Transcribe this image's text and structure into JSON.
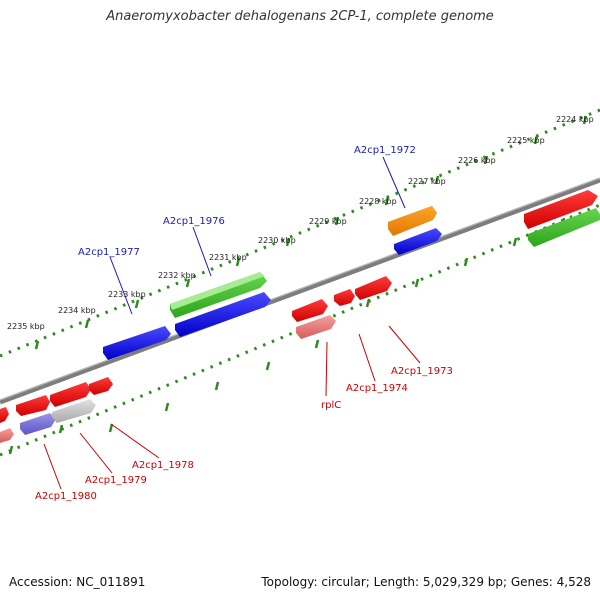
{
  "title": "Anaeromyxobacter dehalogenans 2CP-1, complete genome",
  "footer": {
    "accession": "Accession: NC_011891",
    "topology": "Topology: circular; Length: 5,029,329 bp; Genes: 4,528"
  },
  "ticks": [
    "2224 kbp",
    "2225 kbp",
    "2226 kbp",
    "2227 kbp",
    "2228 kbp",
    "2229 kbp",
    "2230 kbp",
    "2231 kbp",
    "2232 kbp",
    "2233 kbp",
    "2234 kbp",
    "2235 kbp"
  ],
  "gene_labels": {
    "forward": [
      "A2cp1_1972",
      "A2cp1_1976",
      "A2cp1_1977"
    ],
    "reverse": [
      "A2cp1_1973",
      "A2cp1_1974",
      "rplC",
      "A2cp1_1978",
      "A2cp1_1979",
      "A2cp1_1980"
    ]
  },
  "colors": {
    "forward_tick_track": "#2e8b1e",
    "reverse_tick_track": "#2e8b1e",
    "backbone": "#808080",
    "forward_label": "#1a1ab8",
    "reverse_label": "#cc0000"
  }
}
